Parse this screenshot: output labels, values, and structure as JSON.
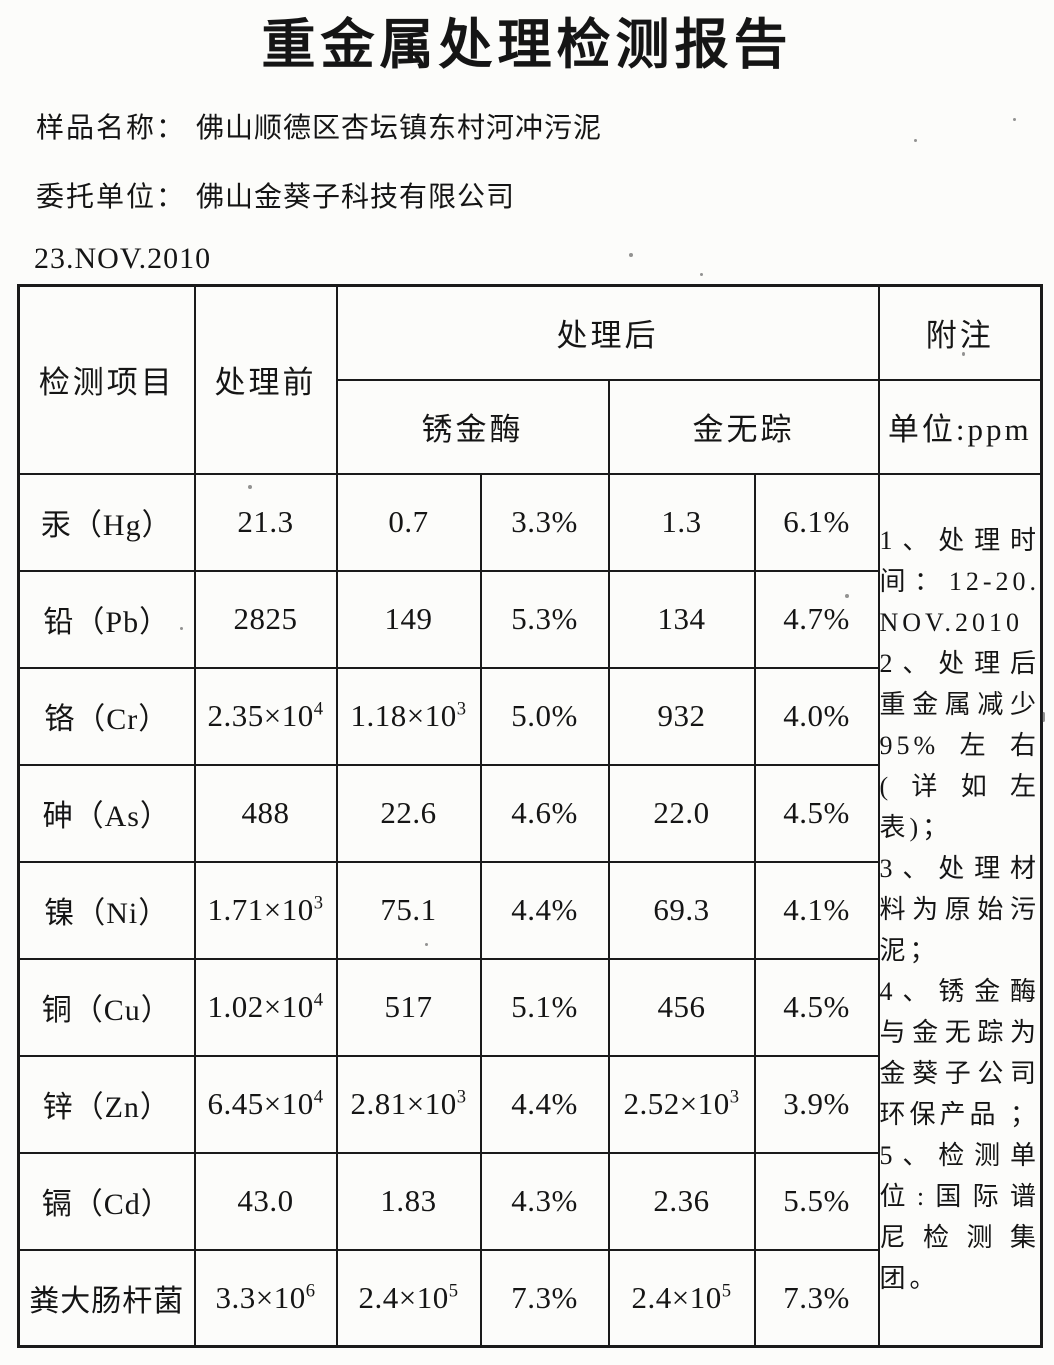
{
  "title": "重金属处理检测报告",
  "meta": {
    "sample_label": "样品名称：",
    "sample_value": "佛山顺德区杏坛镇东村河冲污泥",
    "client_label": "委托单位：",
    "client_value": "佛山金葵子科技有限公司",
    "date": "23.NOV.2010"
  },
  "table": {
    "headers": {
      "item": "检测项目",
      "before": "处理前",
      "after": "处理后",
      "agent1": "锈金酶",
      "agent2": "金无踪",
      "notes": "附注",
      "unit": "单位:ppm"
    },
    "rows": [
      {
        "item": "汞（Hg）",
        "before": "21.3",
        "a1_value": "0.7",
        "a1_percent": "3.3%",
        "a2_value": "1.3",
        "a2_percent": "6.1%"
      },
      {
        "item": "铅（Pb）",
        "before": "2825",
        "a1_value": "149",
        "a1_percent": "5.3%",
        "a2_value": "134",
        "a2_percent": "4.7%"
      },
      {
        "item": "铬（Cr）",
        "before": "2.35×10^4",
        "a1_value": "1.18×10^3",
        "a1_percent": "5.0%",
        "a2_value": "932",
        "a2_percent": "4.0%"
      },
      {
        "item": "砷（As）",
        "before": "488",
        "a1_value": "22.6",
        "a1_percent": "4.6%",
        "a2_value": "22.0",
        "a2_percent": "4.5%"
      },
      {
        "item": "镍（Ni）",
        "before": "1.71×10^3",
        "a1_value": "75.1",
        "a1_percent": "4.4%",
        "a2_value": "69.3",
        "a2_percent": "4.1%"
      },
      {
        "item": "铜（Cu）",
        "before": "1.02×10^4",
        "a1_value": "517",
        "a1_percent": "5.1%",
        "a2_value": "456",
        "a2_percent": "4.5%"
      },
      {
        "item": "锌（Zn）",
        "before": "6.45×10^4",
        "a1_value": "2.81×10^3",
        "a1_percent": "4.4%",
        "a2_value": "2.52×10^3",
        "a2_percent": "3.9%"
      },
      {
        "item": "镉（Cd）",
        "before": "43.0",
        "a1_value": "1.83",
        "a1_percent": "4.3%",
        "a2_value": "2.36",
        "a2_percent": "5.5%"
      },
      {
        "item": "粪大肠杆菌",
        "before": "3.3×10^6",
        "a1_value": "2.4×10^5",
        "a1_percent": "7.3%",
        "a2_value": "2.4×10^5",
        "a2_percent": "7.3%"
      }
    ],
    "notes": [
      "1、处理时间：12-20.NOV.2010",
      "2、处理后重金属减少 95%左右(详如左表)；",
      "3、处理材料为原始污泥；",
      "4、锈金酶与金无踪为金葵子公司环保产品 ；",
      "5、检测单位:国际谱尼检测集团。"
    ]
  }
}
